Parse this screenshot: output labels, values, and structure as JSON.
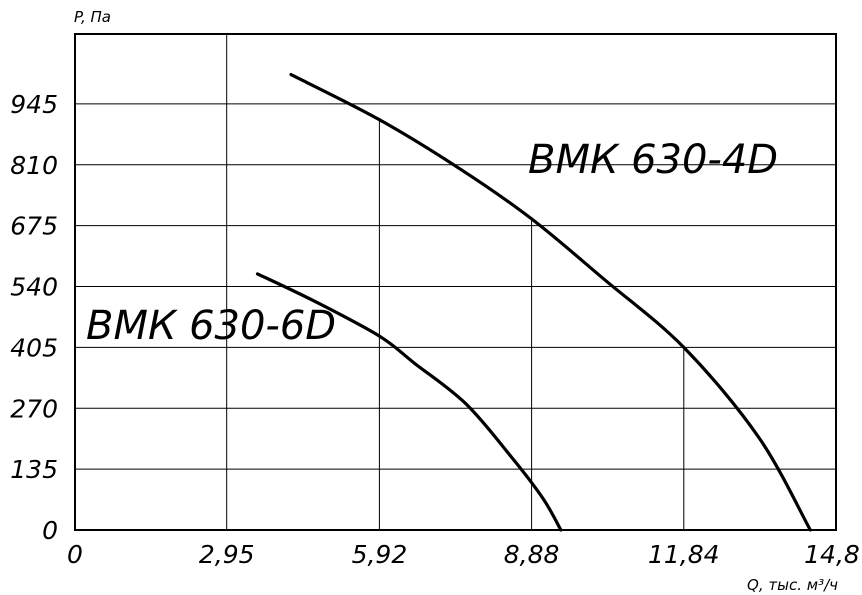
{
  "chart_data": {
    "type": "line",
    "title": "",
    "xlabel": "Q, тыс. м³/ч",
    "ylabel": "P, Па",
    "xlim": [
      0,
      14.8
    ],
    "ylim": [
      0,
      1100
    ],
    "x_ticks": [
      0,
      2.95,
      5.92,
      8.88,
      11.84,
      14.8
    ],
    "x_tick_labels": [
      "0",
      "2,95",
      "5,92",
      "8,88",
      "11,84",
      "14,8"
    ],
    "y_ticks": [
      0,
      135,
      270,
      405,
      540,
      675,
      810,
      945
    ],
    "y_tick_labels": [
      "0",
      "135",
      "270",
      "405",
      "540",
      "675",
      "810",
      "945"
    ],
    "grid": true,
    "series": [
      {
        "name": "ВМК 630-4D",
        "x": [
          4.2,
          5.92,
          7.5,
          8.88,
          10.3,
          11.84,
          13.3,
          14.3
        ],
        "y": [
          1010,
          910,
          800,
          690,
          555,
          405,
          205,
          0
        ]
      },
      {
        "name": "ВМК 630-6D",
        "x": [
          3.55,
          4.7,
          5.92,
          6.6,
          7.6,
          8.5,
          9.1,
          9.45
        ],
        "y": [
          568,
          505,
          430,
          370,
          280,
          160,
          70,
          0
        ]
      }
    ]
  }
}
